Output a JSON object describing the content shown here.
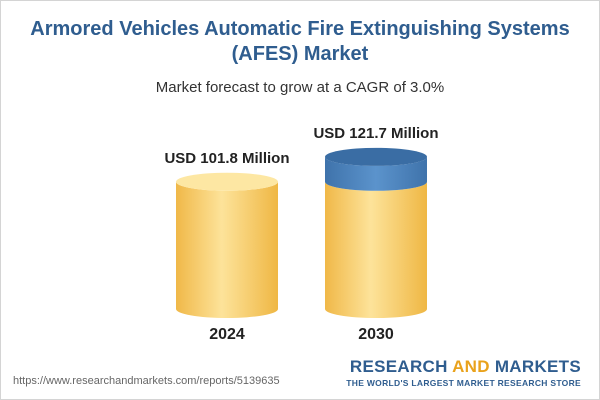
{
  "chart_data": {
    "type": "bar",
    "title": "Armored Vehicles Automatic Fire Extinguishing Systems (AFES) Market",
    "subtitle": "Market forecast to grow at a CAGR of 3.0%",
    "categories": [
      "2024",
      "2030"
    ],
    "values": [
      101.8,
      121.7
    ],
    "value_labels": [
      "USD 101.8 Million",
      "USD 121.7 Million"
    ],
    "unit": "USD Million",
    "colors": {
      "base": "#f8cb62",
      "base_light": "#fde7a3",
      "base_dark": "#edb23d",
      "growth": "#4f86c0",
      "growth_dark": "#3a6da4"
    }
  },
  "footer": {
    "source_url": "https://www.researchandmarkets.com/reports/5139635",
    "brand_part1": "RESEARCH ",
    "brand_part2": "AND",
    "brand_part3": " MARKETS",
    "tagline": "THE WORLD'S LARGEST MARKET RESEARCH STORE"
  }
}
